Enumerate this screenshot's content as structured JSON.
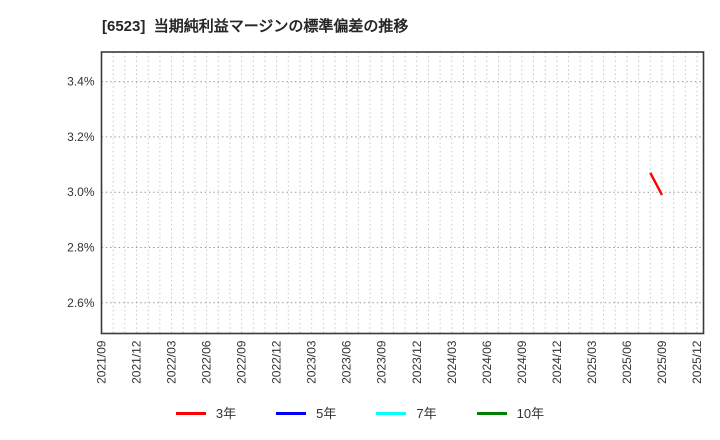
{
  "chart_data": {
    "type": "line",
    "title": "[6523]  当期純利益マージンの標準偏差の推移",
    "xlabel": "",
    "ylabel": "",
    "grid": true,
    "legend_position": "bottom",
    "ylim": [
      2.489,
      3.507
    ],
    "y_ticks": [
      {
        "value": 3.4,
        "label": "3.4%"
      },
      {
        "value": 3.2,
        "label": "3.2%"
      },
      {
        "value": 3.0,
        "label": "3.0%"
      },
      {
        "value": 2.8,
        "label": "2.8%"
      },
      {
        "value": 2.6,
        "label": "2.6%"
      }
    ],
    "x_range": {
      "start": "2021/09",
      "end": "2025/12",
      "minor_gridline_unit": "month",
      "major_tick_unit": "quarter"
    },
    "x_ticks": [
      "2021/09",
      "2021/12",
      "2022/03",
      "2022/06",
      "2022/09",
      "2022/12",
      "2023/03",
      "2023/06",
      "2023/09",
      "2023/12",
      "2024/03",
      "2024/06",
      "2024/09",
      "2024/12",
      "2025/03",
      "2025/06",
      "2025/09",
      "2025/12"
    ],
    "series": [
      {
        "name": "3年",
        "color": "#ff0000",
        "points": [
          {
            "x": "2025/08",
            "y": 3.07
          },
          {
            "x": "2025/09",
            "y": 2.99
          }
        ]
      },
      {
        "name": "5年",
        "color": "#0000ff",
        "points": []
      },
      {
        "name": "7年",
        "color": "#00ffff",
        "points": []
      },
      {
        "name": "10年",
        "color": "#008000",
        "points": []
      }
    ],
    "colors": {
      "grid_h": "#9a9a9a",
      "grid_v": "#c9c9c9",
      "axis_border": "#3a3a3a",
      "tick_text": "#333333"
    }
  }
}
